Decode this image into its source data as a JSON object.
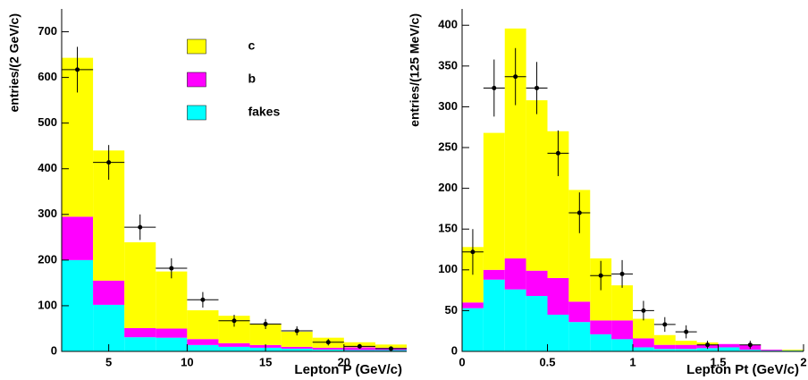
{
  "chart_data": [
    {
      "type": "histogram",
      "x_label": "Lepton P (GeV/c)",
      "y_label": "entries/(2 GeV/c)",
      "bins": [
        2,
        4,
        6,
        8,
        10,
        12,
        14,
        16,
        18,
        20,
        22,
        24
      ],
      "series": [
        {
          "name": "c",
          "color": "#ffff00",
          "values": [
            348,
            285,
            188,
            125,
            63,
            60,
            46,
            33,
            22,
            11,
            7
          ]
        },
        {
          "name": "b",
          "color": "#ff00ff",
          "values": [
            95,
            53,
            20,
            20,
            13,
            8,
            6,
            4,
            4,
            6,
            5
          ]
        },
        {
          "name": "fakes",
          "color": "#00ffff",
          "values": [
            200,
            102,
            31,
            30,
            14,
            10,
            8,
            6,
            4,
            3,
            3
          ]
        }
      ],
      "points": {
        "x": [
          3,
          5,
          7,
          9,
          11,
          13,
          15,
          17,
          19,
          21,
          23
        ],
        "values": [
          617,
          414,
          272,
          182,
          113,
          67,
          60,
          45,
          20,
          11,
          6
        ],
        "errors": [
          50,
          38,
          28,
          22,
          17,
          13,
          11,
          10,
          7,
          5,
          4
        ]
      },
      "xlim": [
        2,
        24
      ],
      "ylim": [
        0,
        750
      ],
      "xticks": [
        5,
        10,
        15,
        20
      ],
      "yticks": [
        0,
        100,
        200,
        300,
        400,
        500,
        600,
        700
      ],
      "legend": "top-center"
    },
    {
      "type": "histogram",
      "x_label": "Lepton Pt (GeV/c)",
      "y_label": "entries/(125 MeV/c)",
      "bins": [
        0,
        0.125,
        0.25,
        0.375,
        0.5,
        0.625,
        0.75,
        0.875,
        1,
        1.125,
        1.25,
        1.375,
        1.5,
        1.625,
        1.75,
        1.875,
        2
      ],
      "series": [
        {
          "name": "c",
          "color": "#ffff00",
          "values": [
            68,
            168,
            282,
            209,
            180,
            137,
            76,
            43,
            24,
            12,
            5,
            3,
            0,
            0,
            0,
            1
          ]
        },
        {
          "name": "b",
          "color": "#ff00ff",
          "values": [
            7,
            12,
            38,
            31,
            45,
            25,
            17,
            23,
            11,
            5,
            5,
            4,
            4,
            6,
            1,
            0
          ]
        },
        {
          "name": "fakes",
          "color": "#00ffff",
          "values": [
            53,
            88,
            76,
            68,
            45,
            36,
            21,
            15,
            5,
            3,
            3,
            4,
            5,
            2,
            1,
            1
          ]
        }
      ],
      "points": {
        "x": [
          0.0625,
          0.1875,
          0.3125,
          0.4375,
          0.5625,
          0.6875,
          0.8125,
          0.9375,
          1.0625,
          1.1875,
          1.3125,
          1.4375,
          1.6875
        ],
        "values": [
          122,
          323,
          337,
          323,
          243,
          170,
          93,
          95,
          50,
          33,
          24,
          8,
          8
        ],
        "errors": [
          28,
          35,
          35,
          32,
          28,
          25,
          18,
          17,
          12,
          9,
          8,
          5,
          5
        ]
      },
      "xlim": [
        0,
        2
      ],
      "ylim": [
        0,
        420
      ],
      "xticks": [
        0,
        0.5,
        1,
        1.5,
        2
      ],
      "yticks": [
        0,
        50,
        100,
        150,
        200,
        250,
        300,
        350,
        400
      ],
      "legend": "none"
    }
  ]
}
